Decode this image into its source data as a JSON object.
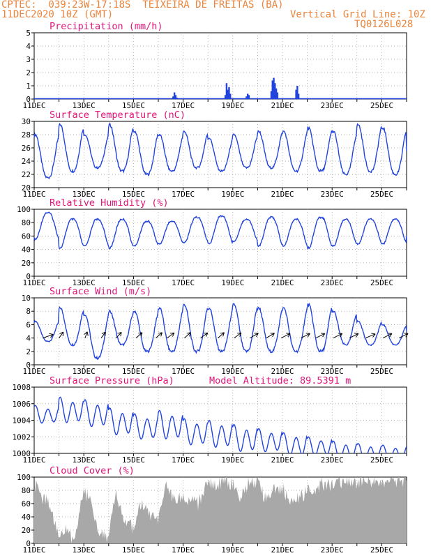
{
  "header": {
    "line1": "CPTEC:  039:23W-17:18S  TEIXEIRA DE FREITAS (BA)",
    "line2": "11DEC2020 10Z (GMT)",
    "grid_line": "Vertical Grid Line: 10Z",
    "code": "TQ0126L028"
  },
  "colors": {
    "header": "#e8843c",
    "title": "#e0147a",
    "series": "#2244dd",
    "cloud": "#a8a8a8",
    "grid": "#999999"
  },
  "chart_data": {
    "type": "line",
    "x_ticks": [
      "11DEC",
      "13DEC",
      "15DEC",
      "17DEC",
      "19DEC",
      "21DEC",
      "23DEC",
      "25DEC"
    ],
    "x_range_days": [
      0,
      15
    ],
    "panels": [
      {
        "id": "precip",
        "type": "bar",
        "title": "Precipitation (mm/h)",
        "ylim": [
          0,
          5
        ],
        "yticks": [
          0,
          1,
          2,
          3,
          4,
          5
        ],
        "bars": [
          [
            5.6,
            0.2
          ],
          [
            5.65,
            0.5
          ],
          [
            5.7,
            0.3
          ],
          [
            5.75,
            0.1
          ],
          [
            7.7,
            0.3
          ],
          [
            7.75,
            1.2
          ],
          [
            7.8,
            0.7
          ],
          [
            7.85,
            0.9
          ],
          [
            7.9,
            0.4
          ],
          [
            8.55,
            0.2
          ],
          [
            8.6,
            0.4
          ],
          [
            8.65,
            0.3
          ],
          [
            9.55,
            0.6
          ],
          [
            9.6,
            1.4
          ],
          [
            9.65,
            1.6
          ],
          [
            9.7,
            1.2
          ],
          [
            9.75,
            0.8
          ],
          [
            9.8,
            0.5
          ],
          [
            10.55,
            0.7
          ],
          [
            10.6,
            1.0
          ],
          [
            10.65,
            0.4
          ]
        ]
      },
      {
        "id": "temp",
        "type": "line",
        "title": "Surface Temperature (nC)",
        "ylim": [
          20,
          30
        ],
        "yticks": [
          20,
          22,
          24,
          26,
          28,
          30
        ],
        "daily_min": [
          21.5,
          22.5,
          23.0,
          22.5,
          22.0,
          22.5,
          23.0,
          22.5,
          23.0,
          23.0,
          22.5,
          22.5,
          22.0,
          22.5,
          22.0,
          24.0
        ],
        "daily_max": [
          28.0,
          29.5,
          28.0,
          29.5,
          28.5,
          28.0,
          28.5,
          27.5,
          28.0,
          28.5,
          28.5,
          29.0,
          28.5,
          29.5,
          29.0,
          25.5
        ]
      },
      {
        "id": "rh",
        "type": "line",
        "title": "Relative Humidity (%)",
        "ylim": [
          0,
          100
        ],
        "yticks": [
          0,
          20,
          40,
          60,
          80,
          100
        ],
        "daily_min": [
          55,
          42,
          45,
          42,
          45,
          48,
          50,
          48,
          52,
          45,
          45,
          42,
          45,
          48,
          48,
          60
        ],
        "daily_max": [
          95,
          85,
          85,
          85,
          82,
          82,
          88,
          90,
          85,
          88,
          85,
          88,
          85,
          85,
          85,
          68
        ]
      },
      {
        "id": "wind",
        "type": "line",
        "title": "Surface Wind (m/s)",
        "ylim": [
          0,
          10
        ],
        "yticks": [
          0,
          2,
          4,
          6,
          8,
          10
        ],
        "daily_min": [
          3.5,
          3.0,
          1.0,
          3.0,
          2.0,
          2.0,
          2.0,
          2.0,
          2.0,
          2.0,
          2.0,
          2.0,
          3.0,
          3.0,
          3.0,
          4.0
        ],
        "daily_max": [
          6.5,
          8.5,
          7.5,
          8.0,
          8.0,
          8.5,
          9.0,
          8.5,
          9.0,
          8.5,
          8.5,
          9.0,
          8.0,
          6.5,
          6.0,
          5.0
        ],
        "arrows": [
          [
            0.35,
            215
          ],
          [
            1.0,
            250
          ],
          [
            2.05,
            260
          ],
          [
            2.7,
            250
          ],
          [
            3.3,
            245
          ],
          [
            4.1,
            240
          ],
          [
            4.9,
            240
          ],
          [
            5.35,
            235
          ],
          [
            6.05,
            240
          ],
          [
            6.7,
            235
          ],
          [
            7.4,
            240
          ],
          [
            8.05,
            235
          ],
          [
            8.7,
            230
          ],
          [
            9.35,
            230
          ],
          [
            9.95,
            225
          ],
          [
            10.75,
            225
          ],
          [
            11.35,
            225
          ],
          [
            12.05,
            225
          ],
          [
            12.7,
            225
          ],
          [
            13.35,
            220
          ],
          [
            14.05,
            225
          ],
          [
            14.7,
            225
          ]
        ]
      },
      {
        "id": "pressure",
        "type": "line",
        "title": "Surface Pressure (hPa)",
        "extra": "Model Altitude: 89.5391 m",
        "ylim": [
          1000,
          1008
        ],
        "yticks": [
          1000,
          1002,
          1004,
          1006,
          1008
        ],
        "semidiurnal_max": [
          1005.8,
          1006.8,
          1006.5,
          1005.5,
          1004.8,
          1005.2,
          1004.2,
          1004.0,
          1003.5,
          1003.0,
          1002.5,
          1002.0,
          1001.5,
          1001.2,
          1001.0,
          1001.0
        ],
        "semidiurnal_min": [
          1003.5,
          1003.5,
          1003.0,
          1002.0,
          1001.5,
          1001.5,
          1000.8,
          1000.5,
          1000.0,
          1000.0,
          999.5,
          999.5,
          999.0,
          999.0,
          999.0,
          999.0
        ]
      },
      {
        "id": "cloud",
        "type": "area",
        "title": "Cloud Cover (%)",
        "ylim": [
          0,
          100
        ],
        "yticks": [
          0,
          20,
          40,
          60,
          80,
          100
        ],
        "profile": [
          [
            0.0,
            90
          ],
          [
            0.3,
            70
          ],
          [
            0.6,
            60
          ],
          [
            1.0,
            10
          ],
          [
            1.3,
            20
          ],
          [
            1.6,
            5
          ],
          [
            2.0,
            80
          ],
          [
            2.3,
            60
          ],
          [
            2.6,
            20
          ],
          [
            3.0,
            10
          ],
          [
            3.3,
            75
          ],
          [
            3.6,
            40
          ],
          [
            4.0,
            20
          ],
          [
            4.3,
            60
          ],
          [
            4.6,
            45
          ],
          [
            5.0,
            30
          ],
          [
            5.3,
            85
          ],
          [
            5.6,
            70
          ],
          [
            6.0,
            65
          ],
          [
            6.3,
            70
          ],
          [
            6.6,
            60
          ],
          [
            7.0,
            90
          ],
          [
            7.3,
            85
          ],
          [
            7.6,
            95
          ],
          [
            8.0,
            90
          ],
          [
            8.3,
            70
          ],
          [
            8.6,
            90
          ],
          [
            9.0,
            92
          ],
          [
            9.3,
            70
          ],
          [
            9.6,
            80
          ],
          [
            10.0,
            85
          ],
          [
            10.3,
            60
          ],
          [
            10.6,
            65
          ],
          [
            11.0,
            80
          ],
          [
            11.3,
            75
          ],
          [
            11.6,
            90
          ],
          [
            12.0,
            85
          ],
          [
            12.3,
            92
          ],
          [
            12.6,
            95
          ],
          [
            13.0,
            93
          ],
          [
            13.3,
            95
          ],
          [
            13.6,
            94
          ],
          [
            14.0,
            95
          ],
          [
            14.3,
            96
          ],
          [
            14.6,
            95
          ],
          [
            15.0,
            96
          ]
        ]
      }
    ]
  }
}
